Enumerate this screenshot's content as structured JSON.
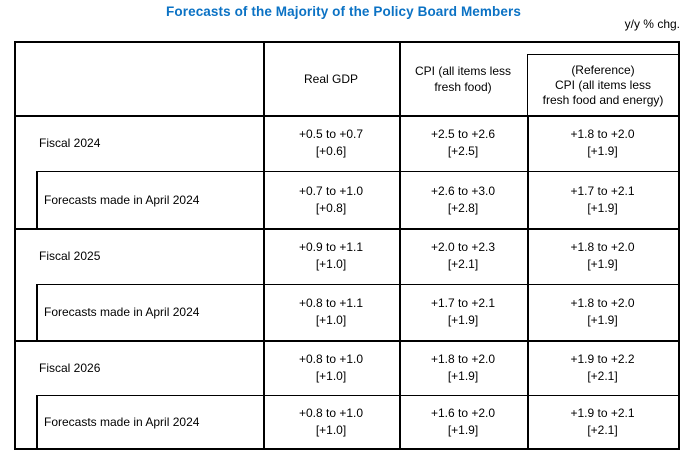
{
  "title": "Forecasts of the Majority of the Policy Board Members",
  "unit_note": "y/y % chg.",
  "accent_color": "#0b72c4",
  "table": {
    "header": {
      "real_gdp": "Real GDP",
      "cpi_lines": [
        "CPI (all items less",
        "fresh food)"
      ],
      "ref_lines": [
        "(Reference)",
        "CPI (all items less",
        "fresh food and energy)"
      ]
    },
    "rows": [
      {
        "label": "Fiscal 2024",
        "real_gdp": {
          "range": "+0.5 to +0.7",
          "median": "[+0.6]"
        },
        "cpi": {
          "range": "+2.5 to +2.6",
          "median": "[+2.5]"
        },
        "cpi_ref": {
          "range": "+1.8 to +2.0",
          "median": "[+1.9]"
        }
      },
      {
        "label": "Forecasts made in April 2024",
        "real_gdp": {
          "range": "+0.7 to +1.0",
          "median": "[+0.8]"
        },
        "cpi": {
          "range": "+2.6 to +3.0",
          "median": "[+2.8]"
        },
        "cpi_ref": {
          "range": "+1.7 to +2.1",
          "median": "[+1.9]"
        }
      },
      {
        "label": "Fiscal 2025",
        "real_gdp": {
          "range": "+0.9 to +1.1",
          "median": "[+1.0]"
        },
        "cpi": {
          "range": "+2.0 to +2.3",
          "median": "[+2.1]"
        },
        "cpi_ref": {
          "range": "+1.8 to +2.0",
          "median": "[+1.9]"
        }
      },
      {
        "label": "Forecasts made in April 2024",
        "real_gdp": {
          "range": "+0.8 to +1.1",
          "median": "[+1.0]"
        },
        "cpi": {
          "range": "+1.7 to +2.1",
          "median": "[+1.9]"
        },
        "cpi_ref": {
          "range": "+1.8 to +2.0",
          "median": "[+1.9]"
        }
      },
      {
        "label": "Fiscal 2026",
        "real_gdp": {
          "range": "+0.8 to +1.0",
          "median": "[+1.0]"
        },
        "cpi": {
          "range": "+1.8 to +2.0",
          "median": "[+1.9]"
        },
        "cpi_ref": {
          "range": "+1.9 to +2.2",
          "median": "[+2.1]"
        }
      },
      {
        "label": "Forecasts made in April 2024",
        "real_gdp": {
          "range": "+0.8 to +1.0",
          "median": "[+1.0]"
        },
        "cpi": {
          "range": "+1.6 to +2.0",
          "median": "[+1.9]"
        },
        "cpi_ref": {
          "range": "+1.9 to +2.1",
          "median": "[+2.1]"
        }
      }
    ]
  }
}
